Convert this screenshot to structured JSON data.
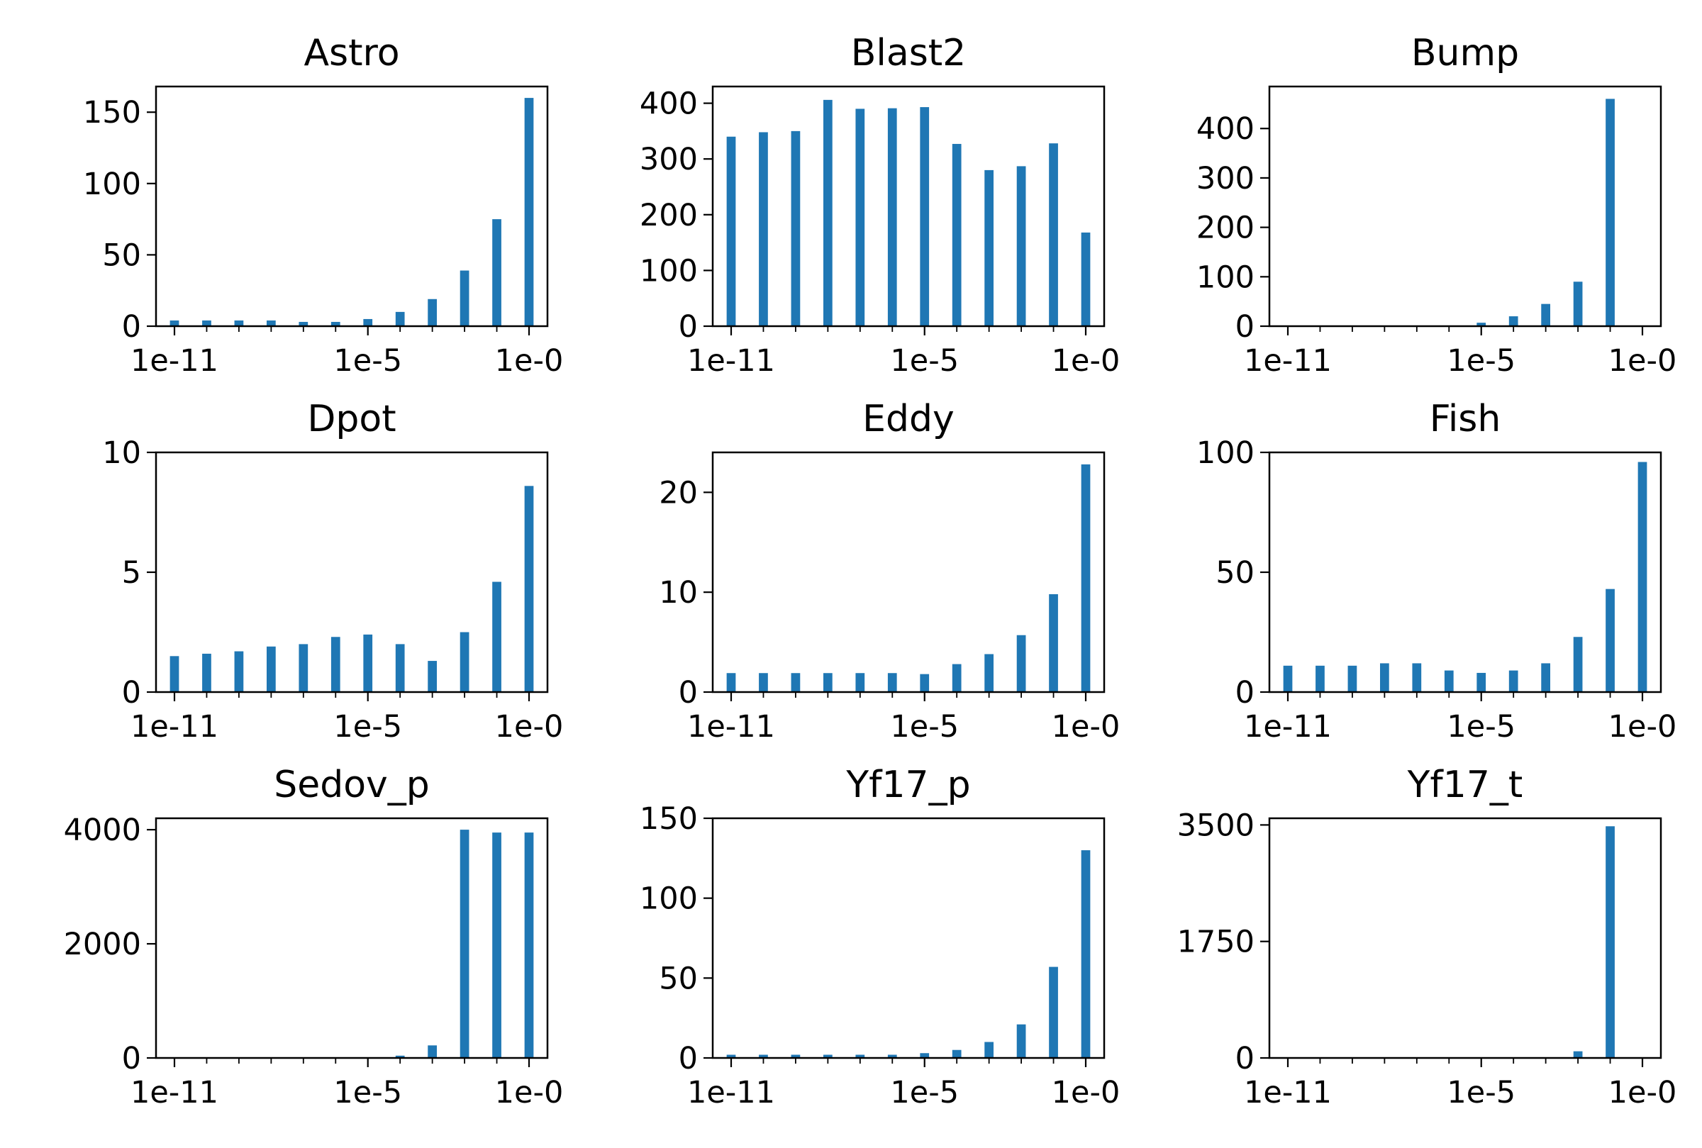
{
  "figure": {
    "bar_color": "#1f77b4",
    "axis_color": "#000000",
    "background": "#ffffff",
    "grid": false,
    "legend": "none"
  },
  "chart_data": [
    {
      "type": "bar",
      "title": "Astro",
      "xlabel": "",
      "ylabel": "",
      "x": [
        "1e-11",
        "1e-10",
        "1e-9",
        "1e-8",
        "1e-7",
        "1e-6",
        "1e-5",
        "1e-4",
        "1e-3",
        "1e-2",
        "1e-1",
        "1e-0"
      ],
      "values": [
        4,
        4,
        4,
        4,
        3,
        3,
        5,
        10,
        19,
        39,
        75,
        160
      ],
      "x_tick_labels": [
        "1e-11",
        "1e-5",
        "1e-0"
      ],
      "yticks": [
        0,
        50,
        100,
        150
      ],
      "y_tick_labels": [
        "0",
        "50",
        "100",
        "150"
      ],
      "ylim": [
        0,
        168
      ],
      "x_scale": "log"
    },
    {
      "type": "bar",
      "title": "Blast2",
      "xlabel": "",
      "ylabel": "",
      "x": [
        "1e-11",
        "1e-10",
        "1e-9",
        "1e-8",
        "1e-7",
        "1e-6",
        "1e-5",
        "1e-4",
        "1e-3",
        "1e-2",
        "1e-1",
        "1e-0"
      ],
      "values": [
        340,
        348,
        350,
        406,
        390,
        391,
        393,
        327,
        280,
        287,
        328,
        168
      ],
      "x_tick_labels": [
        "1e-11",
        "1e-5",
        "1e-0"
      ],
      "yticks": [
        0,
        100,
        200,
        300,
        400
      ],
      "y_tick_labels": [
        "0",
        "100",
        "200",
        "300",
        "400"
      ],
      "ylim": [
        0,
        430
      ],
      "x_scale": "log"
    },
    {
      "type": "bar",
      "title": "Bump",
      "xlabel": "",
      "ylabel": "",
      "x": [
        "1e-11",
        "1e-10",
        "1e-9",
        "1e-8",
        "1e-7",
        "1e-6",
        "1e-5",
        "1e-4",
        "1e-3",
        "1e-2",
        "1e-1",
        "1e-0"
      ],
      "values": [
        0,
        0,
        0,
        0,
        0,
        0,
        7,
        20,
        45,
        90,
        460,
        0
      ],
      "x_tick_labels": [
        "1e-11",
        "1e-5",
        "1e-0"
      ],
      "yticks": [
        0,
        100,
        200,
        300,
        400
      ],
      "y_tick_labels": [
        "0",
        "100",
        "200",
        "300",
        "400"
      ],
      "ylim": [
        0,
        485
      ],
      "x_scale": "log"
    },
    {
      "type": "bar",
      "title": "Dpot",
      "xlabel": "",
      "ylabel": "",
      "x": [
        "1e-11",
        "1e-10",
        "1e-9",
        "1e-8",
        "1e-7",
        "1e-6",
        "1e-5",
        "1e-4",
        "1e-3",
        "1e-2",
        "1e-1",
        "1e-0"
      ],
      "values": [
        1.5,
        1.6,
        1.7,
        1.9,
        2.0,
        2.3,
        2.4,
        2.0,
        1.3,
        2.5,
        4.6,
        8.6
      ],
      "x_tick_labels": [
        "1e-11",
        "1e-5",
        "1e-0"
      ],
      "yticks": [
        0,
        5,
        10
      ],
      "y_tick_labels": [
        "0",
        "5",
        "10"
      ],
      "ylim": [
        0,
        10
      ],
      "x_scale": "log"
    },
    {
      "type": "bar",
      "title": "Eddy",
      "xlabel": "",
      "ylabel": "",
      "x": [
        "1e-11",
        "1e-10",
        "1e-9",
        "1e-8",
        "1e-7",
        "1e-6",
        "1e-5",
        "1e-4",
        "1e-3",
        "1e-2",
        "1e-1",
        "1e-0"
      ],
      "values": [
        1.9,
        1.9,
        1.9,
        1.9,
        1.9,
        1.9,
        1.8,
        2.8,
        3.8,
        5.7,
        9.8,
        22.8
      ],
      "x_tick_labels": [
        "1e-11",
        "1e-5",
        "1e-0"
      ],
      "yticks": [
        0,
        10,
        20
      ],
      "y_tick_labels": [
        "0",
        "10",
        "20"
      ],
      "ylim": [
        0,
        24
      ],
      "x_scale": "log"
    },
    {
      "type": "bar",
      "title": "Fish",
      "xlabel": "",
      "ylabel": "",
      "x": [
        "1e-11",
        "1e-10",
        "1e-9",
        "1e-8",
        "1e-7",
        "1e-6",
        "1e-5",
        "1e-4",
        "1e-3",
        "1e-2",
        "1e-1",
        "1e-0"
      ],
      "values": [
        11,
        11,
        11,
        12,
        12,
        9,
        8,
        9,
        12,
        23,
        43,
        96
      ],
      "x_tick_labels": [
        "1e-11",
        "1e-5",
        "1e-0"
      ],
      "yticks": [
        0,
        50,
        100
      ],
      "y_tick_labels": [
        "0",
        "50",
        "100"
      ],
      "ylim": [
        0,
        100
      ],
      "x_scale": "log"
    },
    {
      "type": "bar",
      "title": "Sedov_p",
      "xlabel": "",
      "ylabel": "",
      "x": [
        "1e-11",
        "1e-10",
        "1e-9",
        "1e-8",
        "1e-7",
        "1e-6",
        "1e-5",
        "1e-4",
        "1e-3",
        "1e-2",
        "1e-1",
        "1e-0"
      ],
      "values": [
        0,
        0,
        0,
        0,
        0,
        0,
        0,
        40,
        220,
        4000,
        3950,
        3950
      ],
      "x_tick_labels": [
        "1e-11",
        "1e-5",
        "1e-0"
      ],
      "yticks": [
        0,
        2000,
        4000
      ],
      "y_tick_labels": [
        "0",
        "2000",
        "4000"
      ],
      "ylim": [
        0,
        4200
      ],
      "x_scale": "log"
    },
    {
      "type": "bar",
      "title": "Yf17_p",
      "xlabel": "",
      "ylabel": "",
      "x": [
        "1e-11",
        "1e-10",
        "1e-9",
        "1e-8",
        "1e-7",
        "1e-6",
        "1e-5",
        "1e-4",
        "1e-3",
        "1e-2",
        "1e-1",
        "1e-0"
      ],
      "values": [
        2,
        2,
        2,
        2,
        2,
        2,
        3,
        5,
        10,
        21,
        57,
        130
      ],
      "x_tick_labels": [
        "1e-11",
        "1e-5",
        "1e-0"
      ],
      "yticks": [
        0,
        50,
        100,
        150
      ],
      "y_tick_labels": [
        "0",
        "50",
        "100",
        "150"
      ],
      "ylim": [
        0,
        150
      ],
      "x_scale": "log"
    },
    {
      "type": "bar",
      "title": "Yf17_t",
      "xlabel": "",
      "ylabel": "",
      "x": [
        "1e-11",
        "1e-10",
        "1e-9",
        "1e-8",
        "1e-7",
        "1e-6",
        "1e-5",
        "1e-4",
        "1e-3",
        "1e-2",
        "1e-1",
        "1e-0"
      ],
      "values": [
        0,
        0,
        0,
        0,
        0,
        0,
        0,
        0,
        10,
        100,
        3480,
        0
      ],
      "x_tick_labels": [
        "1e-11",
        "1e-5",
        "1e-0"
      ],
      "yticks": [
        0,
        1750,
        3500
      ],
      "y_tick_labels": [
        "0",
        "1750",
        "3500"
      ],
      "ylim": [
        0,
        3600
      ],
      "x_scale": "log"
    }
  ]
}
